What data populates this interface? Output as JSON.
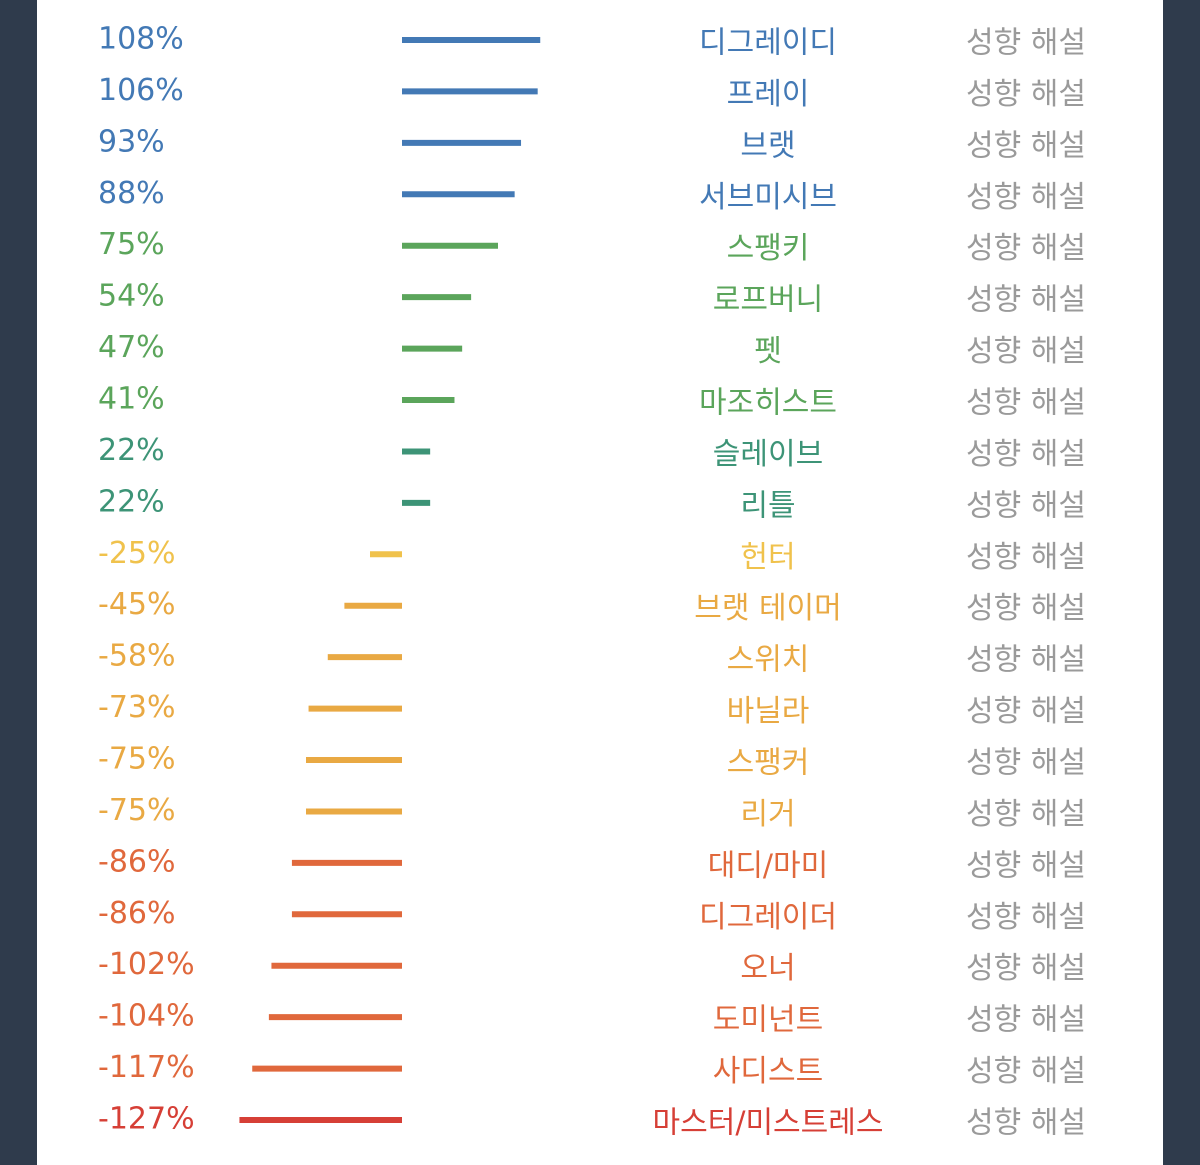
{
  "rows": [
    {
      "value": 108,
      "value_label": "108%",
      "label": "디그레이디",
      "link": "성향 해설",
      "color": "#4379b5"
    },
    {
      "value": 106,
      "value_label": "106%",
      "label": "프레이",
      "link": "성향 해설",
      "color": "#4379b5"
    },
    {
      "value": 93,
      "value_label": "93%",
      "label": "브랫",
      "link": "성향 해설",
      "color": "#4379b5"
    },
    {
      "value": 88,
      "value_label": "88%",
      "label": "서브미시브",
      "link": "성향 해설",
      "color": "#4379b5"
    },
    {
      "value": 75,
      "value_label": "75%",
      "label": "스팽키",
      "link": "성향 해설",
      "color": "#5ba55b"
    },
    {
      "value": 54,
      "value_label": "54%",
      "label": "로프버니",
      "link": "성향 해설",
      "color": "#5ba55b"
    },
    {
      "value": 47,
      "value_label": "47%",
      "label": "펫",
      "link": "성향 해설",
      "color": "#5ba55b"
    },
    {
      "value": 41,
      "value_label": "41%",
      "label": "마조히스트",
      "link": "성향 해설",
      "color": "#5ba55b"
    },
    {
      "value": 22,
      "value_label": "22%",
      "label": "슬레이브",
      "link": "성향 해설",
      "color": "#3d9477"
    },
    {
      "value": 22,
      "value_label": "22%",
      "label": "리틀",
      "link": "성향 해설",
      "color": "#3d9477"
    },
    {
      "value": -25,
      "value_label": "-25%",
      "label": "헌터",
      "link": "성향 해설",
      "color": "#f0c24c"
    },
    {
      "value": -45,
      "value_label": "-45%",
      "label": "브랫 테이머",
      "link": "성향 해설",
      "color": "#e9a943"
    },
    {
      "value": -58,
      "value_label": "-58%",
      "label": "스위치",
      "link": "성향 해설",
      "color": "#e9a943"
    },
    {
      "value": -73,
      "value_label": "-73%",
      "label": "바닐라",
      "link": "성향 해설",
      "color": "#e9a943"
    },
    {
      "value": -75,
      "value_label": "-75%",
      "label": "스팽커",
      "link": "성향 해설",
      "color": "#e9a943"
    },
    {
      "value": -75,
      "value_label": "-75%",
      "label": "리거",
      "link": "성향 해설",
      "color": "#e9a943"
    },
    {
      "value": -86,
      "value_label": "-86%",
      "label": "대디/마미",
      "link": "성향 해설",
      "color": "#e0683c"
    },
    {
      "value": -86,
      "value_label": "-86%",
      "label": "디그레이더",
      "link": "성향 해설",
      "color": "#e0683c"
    },
    {
      "value": -102,
      "value_label": "-102%",
      "label": "오너",
      "link": "성향 해설",
      "color": "#e0683c"
    },
    {
      "value": -104,
      "value_label": "-104%",
      "label": "도미넌트",
      "link": "성향 해설",
      "color": "#e0683c"
    },
    {
      "value": -117,
      "value_label": "-117%",
      "label": "사디스트",
      "link": "성향 해설",
      "color": "#e0683c"
    },
    {
      "value": -127,
      "value_label": "-127%",
      "label": "마스터/미스트레스",
      "link": "성향 해설",
      "color": "#d63f36"
    }
  ]
}
